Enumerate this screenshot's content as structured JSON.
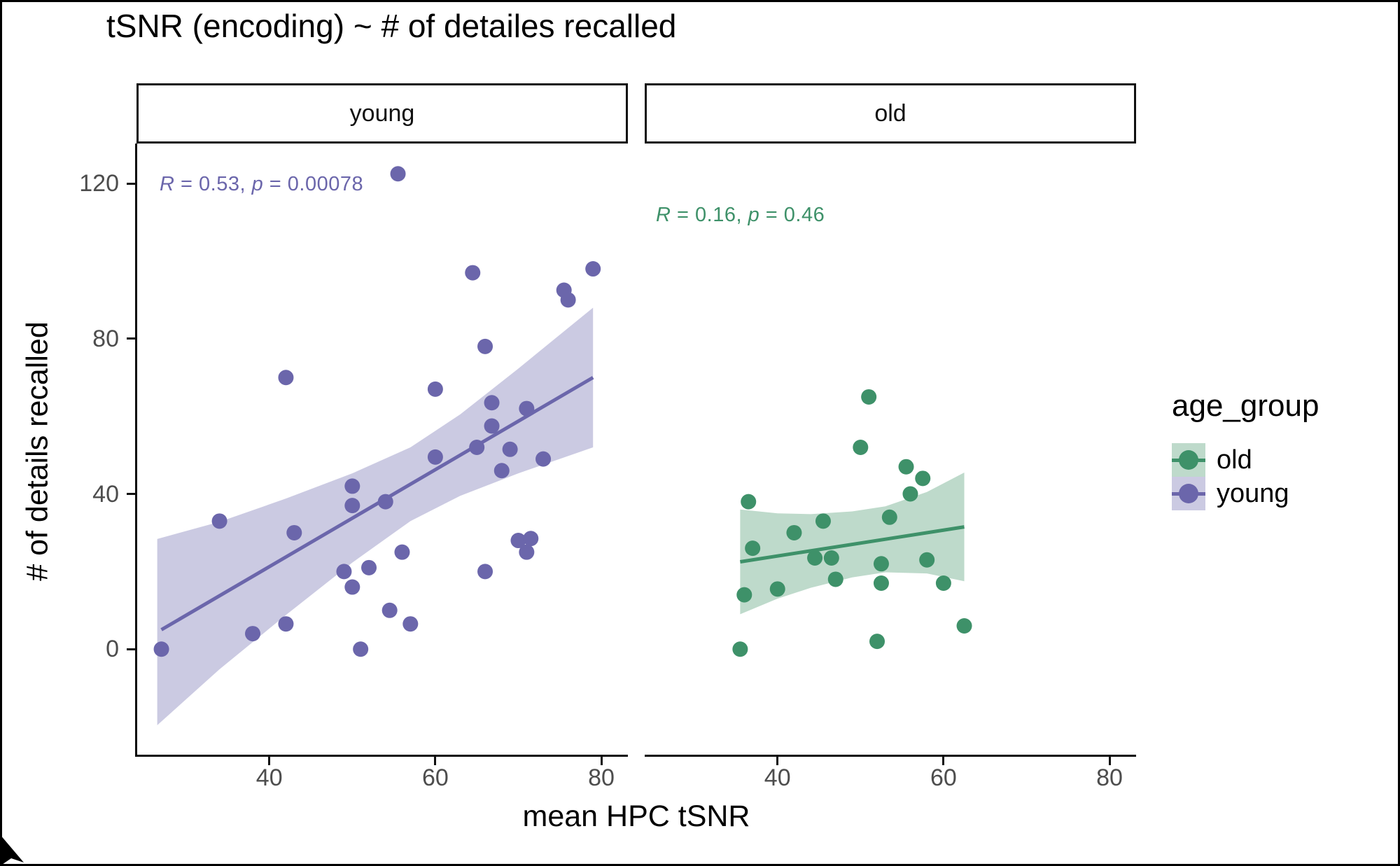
{
  "title": "tSNR (encoding) ~ # of detailes recalled",
  "legend": {
    "title": "age_group",
    "items": [
      {
        "label": "old",
        "color": "#3E9169",
        "fill": "#BEDACB"
      },
      {
        "label": "young",
        "color": "#6B66AB",
        "fill": "#CBCAE2"
      }
    ]
  },
  "axis": {
    "tick_color": "#4d4d4d"
  },
  "chart_data": {
    "type": "scatter",
    "title": "tSNR (encoding) ~ # of detailes recalled",
    "xlabel": "mean HPC tSNR",
    "ylabel": "# of details recalled",
    "x_ticks": [
      40,
      60,
      80
    ],
    "y_ticks": [
      0,
      40,
      80,
      120
    ],
    "xlim": [
      24,
      83.2
    ],
    "ylim": [
      -27.2,
      130.3
    ],
    "grid": "off",
    "legend_title": "age_group",
    "legend_position": "right",
    "facets": [
      {
        "label": "young",
        "color": "#6B66AB",
        "fill": "#CBCAE2",
        "annotation": "R = 0.53, p = 0.00078",
        "annotation_parts": {
          "r": "R",
          "mid": " = 0.53, ",
          "p": "p",
          "end": " = 0.00078"
        },
        "points": [
          [
            27,
            0
          ],
          [
            34,
            33
          ],
          [
            38,
            4
          ],
          [
            42,
            6.5
          ],
          [
            43,
            30
          ],
          [
            42,
            70
          ],
          [
            50,
            42
          ],
          [
            50,
            37
          ],
          [
            49,
            20
          ],
          [
            52,
            21
          ],
          [
            50,
            16
          ],
          [
            51,
            0
          ],
          [
            54,
            38
          ],
          [
            54.5,
            10
          ],
          [
            56,
            25
          ],
          [
            57,
            6.5
          ],
          [
            55.5,
            122.5
          ],
          [
            60,
            67
          ],
          [
            60,
            49.5
          ],
          [
            65,
            52
          ],
          [
            66.8,
            63.5
          ],
          [
            66.8,
            57.5
          ],
          [
            69,
            51.5
          ],
          [
            68,
            46
          ],
          [
            71,
            62
          ],
          [
            73,
            49
          ],
          [
            70,
            28
          ],
          [
            71.5,
            28.5
          ],
          [
            71,
            25
          ],
          [
            66,
            20
          ],
          [
            64.5,
            97
          ],
          [
            79,
            98
          ],
          [
            75.5,
            92.5
          ],
          [
            76,
            90
          ],
          [
            66,
            78
          ]
        ],
        "regression": {
          "x": [
            27,
            79
          ],
          "y": [
            5,
            70
          ]
        },
        "ribbon": {
          "x": [
            26.5,
            34,
            42,
            50,
            57,
            63,
            70,
            79
          ],
          "top": [
            28.4,
            32.8,
            38.8,
            45.3,
            52,
            60.5,
            72.3,
            88
          ],
          "bottom": [
            -19.6,
            -5.2,
            8.8,
            22.3,
            33,
            39.5,
            45.3,
            52
          ]
        }
      },
      {
        "label": "old",
        "color": "#3E9169",
        "fill": "#BEDACB",
        "annotation": "R = 0.16, p = 0.46",
        "annotation_parts": {
          "r": "R",
          "mid": " = 0.16, ",
          "p": "p",
          "end": " = 0.46"
        },
        "points": [
          [
            36.5,
            38
          ],
          [
            50,
            52
          ],
          [
            51,
            65
          ],
          [
            55.5,
            47
          ],
          [
            57.5,
            44
          ],
          [
            56,
            40
          ],
          [
            53.5,
            34
          ],
          [
            45.5,
            33
          ],
          [
            42,
            30
          ],
          [
            37,
            26
          ],
          [
            44.5,
            23.5
          ],
          [
            46.5,
            23.5
          ],
          [
            52.5,
            22
          ],
          [
            58,
            23
          ],
          [
            47,
            18
          ],
          [
            52.5,
            17
          ],
          [
            60,
            17
          ],
          [
            40,
            15.5
          ],
          [
            36,
            14
          ],
          [
            35.5,
            0
          ],
          [
            52,
            2
          ],
          [
            62.5,
            6
          ]
        ],
        "regression": {
          "x": [
            35.5,
            62.5
          ],
          "y": [
            22.5,
            31.5
          ]
        },
        "ribbon": {
          "x": [
            35.5,
            40,
            44,
            49,
            53,
            58,
            62.5
          ],
          "top": [
            36,
            35,
            34.8,
            35.5,
            36.8,
            40.5,
            45.5
          ],
          "bottom": [
            9,
            13,
            15.8,
            18.5,
            19.8,
            19.5,
            17.5
          ]
        }
      }
    ]
  }
}
